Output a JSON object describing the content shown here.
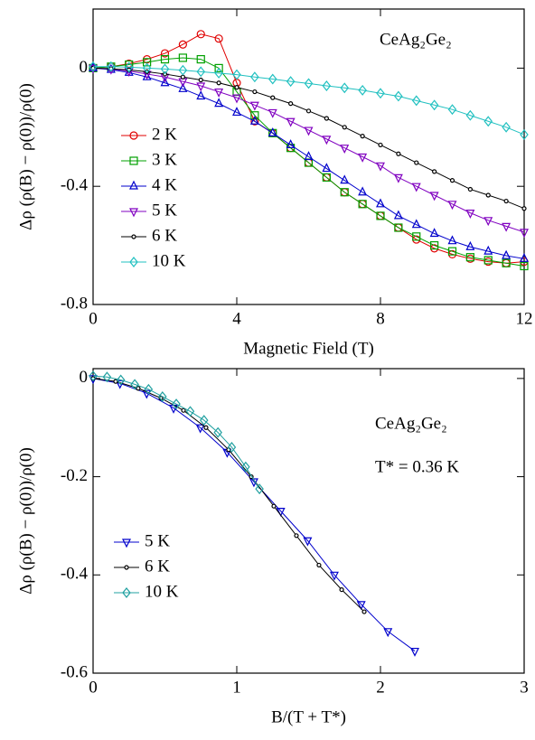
{
  "chart_data": [
    {
      "type": "line",
      "annotations": [
        "CeAg₂Ge₂"
      ],
      "x_label": "Magnetic Field (T)",
      "y_label": "Δρ (ρ(B) − ρ(0))/ρ(0)",
      "xlim": [
        0,
        12
      ],
      "xticks": [
        0,
        4,
        8,
        12
      ],
      "ylim": [
        -0.8,
        0.2
      ],
      "yticks": [
        -0.8,
        -0.4,
        0
      ],
      "legend": "center left",
      "x": [
        0,
        0.5,
        1,
        1.5,
        2,
        2.5,
        3,
        3.5,
        4,
        4.5,
        5,
        5.5,
        6,
        6.5,
        7,
        7.5,
        8,
        8.5,
        9,
        9.5,
        10,
        10.5,
        11,
        11.5,
        12
      ],
      "series": [
        {
          "name": "2 K",
          "color": "#e00000",
          "marker": "circle",
          "values": [
            0,
            0.005,
            0.015,
            0.03,
            0.05,
            0.08,
            0.115,
            0.1,
            -0.05,
            -0.18,
            -0.22,
            -0.27,
            -0.32,
            -0.37,
            -0.42,
            -0.46,
            -0.5,
            -0.54,
            -0.58,
            -0.61,
            -0.63,
            -0.645,
            -0.655,
            -0.66,
            -0.655
          ]
        },
        {
          "name": "3 K",
          "color": "#00a000",
          "marker": "square",
          "values": [
            0,
            0.005,
            0.012,
            0.02,
            0.03,
            0.035,
            0.03,
            0,
            -0.08,
            -0.16,
            -0.22,
            -0.27,
            -0.32,
            -0.37,
            -0.42,
            -0.46,
            -0.5,
            -0.54,
            -0.57,
            -0.6,
            -0.62,
            -0.64,
            -0.65,
            -0.66,
            -0.67
          ]
        },
        {
          "name": "4 K",
          "color": "#0000cc",
          "marker": "triangle-up",
          "values": [
            0,
            -0.005,
            -0.015,
            -0.03,
            -0.05,
            -0.07,
            -0.095,
            -0.12,
            -0.15,
            -0.18,
            -0.22,
            -0.26,
            -0.3,
            -0.34,
            -0.38,
            -0.42,
            -0.46,
            -0.5,
            -0.53,
            -0.56,
            -0.585,
            -0.605,
            -0.62,
            -0.635,
            -0.645
          ]
        },
        {
          "name": "5 K",
          "color": "#8000c0",
          "marker": "triangle-down",
          "values": [
            0,
            -0.003,
            -0.01,
            -0.02,
            -0.03,
            -0.045,
            -0.06,
            -0.08,
            -0.1,
            -0.125,
            -0.15,
            -0.18,
            -0.21,
            -0.24,
            -0.27,
            -0.3,
            -0.33,
            -0.37,
            -0.4,
            -0.43,
            -0.46,
            -0.49,
            -0.515,
            -0.535,
            -0.555
          ]
        },
        {
          "name": "6 K",
          "color": "#000000",
          "marker": "dot",
          "values": [
            0,
            -0.002,
            -0.006,
            -0.012,
            -0.02,
            -0.03,
            -0.04,
            -0.05,
            -0.065,
            -0.08,
            -0.1,
            -0.12,
            -0.145,
            -0.17,
            -0.2,
            -0.23,
            -0.26,
            -0.29,
            -0.32,
            -0.35,
            -0.38,
            -0.41,
            -0.43,
            -0.45,
            -0.475
          ]
        },
        {
          "name": "10 K",
          "color": "#20c0c0",
          "marker": "diamond",
          "values": [
            0.005,
            0.005,
            0.003,
            0,
            -0.003,
            -0.007,
            -0.012,
            -0.017,
            -0.022,
            -0.03,
            -0.037,
            -0.045,
            -0.052,
            -0.06,
            -0.067,
            -0.075,
            -0.085,
            -0.095,
            -0.11,
            -0.125,
            -0.14,
            -0.16,
            -0.18,
            -0.2,
            -0.225
          ]
        }
      ]
    },
    {
      "type": "line",
      "annotations": [
        "CeAg₂Ge₂",
        "T* = 0.36 K"
      ],
      "x_label": "B/(T + T*)",
      "y_label": "Δρ (ρ(B) − ρ(0))/ρ(0)",
      "xlim": [
        0,
        3
      ],
      "xticks": [
        0,
        1,
        2,
        3
      ],
      "ylim": [
        -0.6,
        0.02
      ],
      "yticks": [
        -0.6,
        -0.4,
        -0.2,
        0
      ],
      "legend": "center left",
      "series": [
        {
          "name": "5 K",
          "color": "#0000cc",
          "marker": "triangle-down",
          "x": [
            0,
            0.187,
            0.373,
            0.56,
            0.746,
            0.933,
            1.119,
            1.306,
            1.493,
            1.679,
            1.866,
            2.052,
            2.239
          ],
          "values": [
            0,
            -0.01,
            -0.03,
            -0.06,
            -0.1,
            -0.15,
            -0.21,
            -0.27,
            -0.33,
            -0.4,
            -0.46,
            -0.515,
            -0.555
          ]
        },
        {
          "name": "6 K",
          "color": "#000000",
          "marker": "dot",
          "x": [
            0,
            0.157,
            0.314,
            0.472,
            0.629,
            0.786,
            0.943,
            1.101,
            1.258,
            1.415,
            1.572,
            1.73,
            1.887
          ],
          "values": [
            0,
            -0.006,
            -0.02,
            -0.04,
            -0.065,
            -0.1,
            -0.145,
            -0.2,
            -0.26,
            -0.32,
            -0.38,
            -0.43,
            -0.475
          ]
        },
        {
          "name": "10 K",
          "color": "#20a0a0",
          "marker": "diamond",
          "x": [
            0,
            0.097,
            0.193,
            0.29,
            0.386,
            0.483,
            0.579,
            0.676,
            0.772,
            0.869,
            0.965,
            1.062,
            1.158
          ],
          "values": [
            0.005,
            0.003,
            -0.003,
            -0.012,
            -0.022,
            -0.037,
            -0.052,
            -0.067,
            -0.085,
            -0.11,
            -0.14,
            -0.18,
            -0.225
          ]
        }
      ]
    }
  ]
}
